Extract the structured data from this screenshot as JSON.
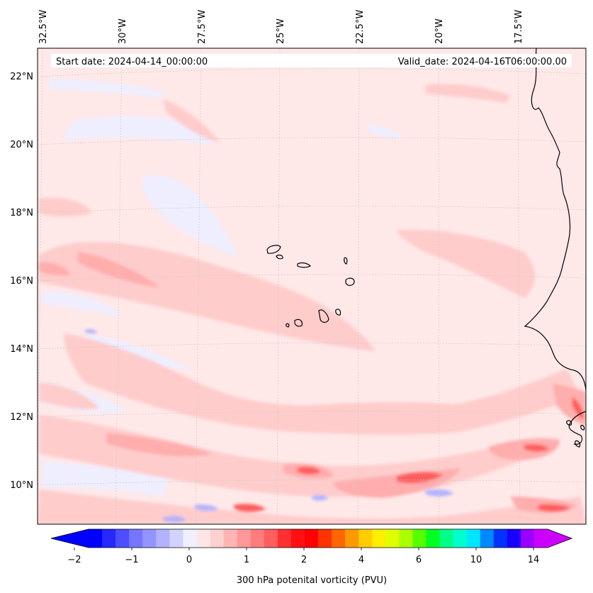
{
  "map": {
    "start_label": "Start date: 2024-04-14_00:00:00",
    "valid_label": "Valid_date: 2024-04-16T06:00:00.00",
    "lon_labels": [
      "32.5°W",
      "30°W",
      "27.5°W",
      "25°W",
      "22.5°W",
      "20°W",
      "17.5°W"
    ],
    "lat_labels": [
      "22°N",
      "20°N",
      "18°N",
      "16°N",
      "14°N",
      "12°N",
      "10°N"
    ],
    "field_name": "300 hPa potential vorticity",
    "region": "Cape Verde / West African coast"
  },
  "colorbar": {
    "label": "300 hPa potenital vorticity (PVU)",
    "ticks": [
      "−2",
      "−1",
      "0",
      "1",
      "2",
      "4",
      "6",
      "10",
      "14"
    ],
    "colors": [
      "#0000ff",
      "#2727ff",
      "#4e4eff",
      "#7575ff",
      "#9494ff",
      "#b2b2ff",
      "#d2d2ff",
      "#efefff",
      "#ffe6e6",
      "#ffd0d0",
      "#ffb4b4",
      "#ff9898",
      "#ff7c7c",
      "#ff5e5e",
      "#ff3030",
      "#ff1010",
      "#ff0000",
      "#ff3300",
      "#ff6600",
      "#ff9900",
      "#ffcc00",
      "#ffee00",
      "#e0ff00",
      "#aaff00",
      "#55ff00",
      "#00ff22",
      "#00ff88",
      "#00ffcc",
      "#00e6ff",
      "#0088ff",
      "#0033ff",
      "#1a00ff",
      "#9900ff",
      "#cc00ff"
    ],
    "extend_low": "#0000ff",
    "extend_high": "#cc00ff"
  }
}
